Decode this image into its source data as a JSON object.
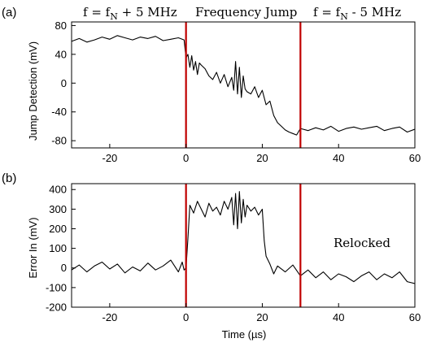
{
  "chart_data": [
    {
      "panel_label": "(a)",
      "type": "line",
      "xlabel": "",
      "ylabel": "Jump Detection (mV)",
      "xlim": [
        -30,
        60
      ],
      "ylim": [
        -90,
        85
      ],
      "xticks": [
        -20,
        0,
        20,
        40,
        60
      ],
      "yticks": [
        -80,
        -40,
        0,
        40,
        80
      ],
      "series": [
        {
          "color": "#000000",
          "x": [
            -30,
            -28,
            -26,
            -24,
            -22,
            -20,
            -18,
            -16,
            -14,
            -12,
            -10,
            -8,
            -6,
            -4,
            -2,
            -0.5,
            0,
            0.5,
            1,
            1.5,
            2,
            2.5,
            3,
            3.5,
            4,
            5,
            6,
            7,
            8,
            9,
            10,
            11,
            12,
            12.5,
            13,
            13.5,
            14,
            14.5,
            15,
            15.5,
            16,
            17,
            18,
            19,
            20,
            21,
            22,
            23,
            24,
            25,
            26,
            27,
            28,
            29,
            30,
            32,
            34,
            36,
            38,
            40,
            42,
            44,
            46,
            48,
            50,
            52,
            54,
            56,
            58,
            60
          ],
          "y": [
            58,
            62,
            57,
            60,
            64,
            61,
            66,
            63,
            60,
            64,
            62,
            65,
            59,
            61,
            63,
            60,
            35,
            40,
            22,
            38,
            18,
            30,
            12,
            28,
            25,
            20,
            10,
            5,
            15,
            0,
            12,
            -5,
            8,
            -10,
            30,
            -15,
            22,
            -20,
            10,
            -8,
            -12,
            -15,
            -5,
            -20,
            -10,
            -30,
            -25,
            -45,
            -55,
            -60,
            -65,
            -68,
            -70,
            -72,
            -63,
            -66,
            -62,
            -65,
            -60,
            -67,
            -63,
            -61,
            -64,
            -62,
            -60,
            -66,
            -63,
            -61,
            -68,
            -64
          ]
        }
      ],
      "regions": [
        {
          "label_main": "f = f",
          "label_sub": "N",
          "label_rest": " + 5 MHz"
        },
        {
          "label_main": "Frequency Jump",
          "label_sub": "",
          "label_rest": ""
        },
        {
          "label_main": "f = f",
          "label_sub": "N",
          "label_rest": " - 5 MHz"
        }
      ],
      "markers": [
        {
          "x": 0,
          "color": "#c00000"
        },
        {
          "x": 30,
          "color": "#c00000"
        }
      ]
    },
    {
      "panel_label": "(b)",
      "type": "line",
      "xlabel": "Time (µs)",
      "ylabel": "Error In (mV)",
      "xlim": [
        -30,
        60
      ],
      "ylim": [
        -200,
        430
      ],
      "xticks": [
        -20,
        0,
        20,
        40,
        60
      ],
      "yticks": [
        -200,
        -100,
        0,
        100,
        200,
        300,
        400
      ],
      "series": [
        {
          "color": "#000000",
          "x": [
            -30,
            -28,
            -26,
            -24,
            -22,
            -20,
            -18,
            -16,
            -14,
            -12,
            -10,
            -8,
            -6,
            -4,
            -2,
            -1,
            -0.5,
            0,
            0.5,
            1,
            2,
            3,
            4,
            5,
            6,
            7,
            8,
            9,
            10,
            11,
            12,
            12.5,
            13,
            13.5,
            14,
            14.5,
            15,
            15.5,
            16,
            17,
            18,
            19,
            20,
            20.5,
            21,
            22,
            23,
            24,
            26,
            28,
            30,
            32,
            34,
            36,
            38,
            40,
            42,
            44,
            46,
            48,
            50,
            52,
            54,
            56,
            58,
            60
          ],
          "y": [
            -10,
            15,
            -20,
            10,
            30,
            -5,
            20,
            -25,
            5,
            -15,
            25,
            -10,
            10,
            40,
            -20,
            30,
            -10,
            0,
            150,
            320,
            280,
            340,
            300,
            260,
            330,
            290,
            310,
            270,
            340,
            300,
            360,
            220,
            380,
            200,
            390,
            230,
            350,
            260,
            320,
            290,
            310,
            270,
            300,
            140,
            60,
            20,
            -30,
            10,
            -20,
            15,
            -40,
            -10,
            -50,
            -20,
            -60,
            -30,
            -45,
            -70,
            -40,
            -20,
            -60,
            -30,
            -50,
            -20,
            -70,
            -80
          ]
        }
      ],
      "annotation": "Relocked",
      "markers": [
        {
          "x": 0,
          "color": "#c00000"
        },
        {
          "x": 30,
          "color": "#c00000"
        }
      ]
    }
  ]
}
